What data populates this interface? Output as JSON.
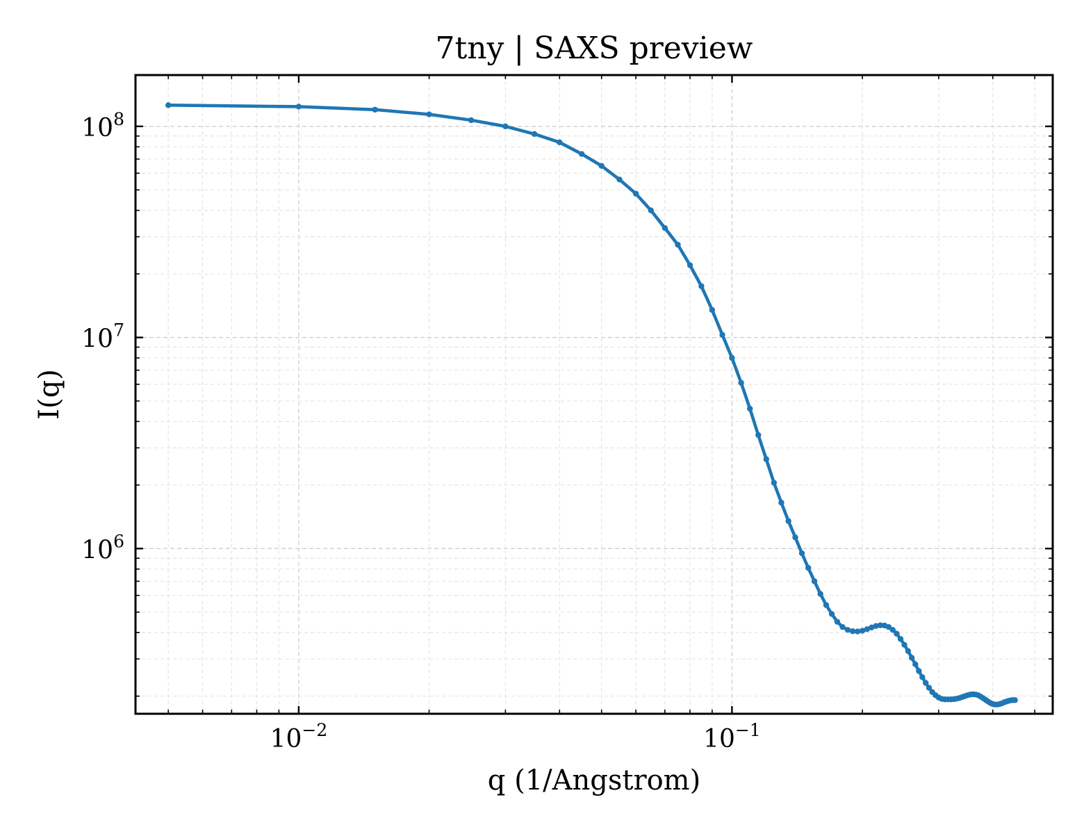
{
  "chart_data": {
    "type": "line",
    "title": "7tny | SAXS preview",
    "xlabel": "q (1/Angstrom)",
    "ylabel": "I(q)",
    "xscale": "log",
    "yscale": "log",
    "xlim": [
      0.0042,
      0.55
    ],
    "ylim": [
      165000,
      175000000
    ],
    "grid": true,
    "grid_minor": true,
    "legend": "none",
    "x_ticks": [
      {
        "value": 0.01,
        "base": "10",
        "exp": "−2"
      },
      {
        "value": 0.1,
        "base": "10",
        "exp": "−1"
      }
    ],
    "y_ticks": [
      {
        "value": 1000000,
        "base": "10",
        "exp": "6"
      },
      {
        "value": 10000000,
        "base": "10",
        "exp": "7"
      },
      {
        "value": 100000000,
        "base": "10",
        "exp": "8"
      }
    ],
    "series": [
      {
        "color": "#1f77b4",
        "marker": "dot",
        "points": [
          [
            0.005,
            126000000
          ],
          [
            0.01,
            124000000
          ],
          [
            0.015,
            120000000
          ],
          [
            0.02,
            114000000
          ],
          [
            0.025,
            107000000
          ],
          [
            0.03,
            100000000
          ],
          [
            0.035,
            92000000
          ],
          [
            0.04,
            84000000
          ],
          [
            0.045,
            74000000
          ],
          [
            0.05,
            65000000
          ],
          [
            0.055,
            56000000
          ],
          [
            0.06,
            48000000
          ],
          [
            0.065,
            40000000
          ],
          [
            0.07,
            33000000
          ],
          [
            0.075,
            27500000
          ],
          [
            0.08,
            22000000
          ],
          [
            0.085,
            17500000
          ],
          [
            0.09,
            13500000
          ],
          [
            0.095,
            10300000
          ],
          [
            0.1,
            8000000
          ],
          [
            0.105,
            6100000
          ],
          [
            0.11,
            4600000
          ],
          [
            0.115,
            3450000
          ],
          [
            0.12,
            2650000
          ],
          [
            0.125,
            2050000
          ],
          [
            0.13,
            1650000
          ],
          [
            0.135,
            1350000
          ],
          [
            0.14,
            1130000
          ],
          [
            0.145,
            950000
          ],
          [
            0.15,
            810000
          ],
          [
            0.155,
            700000
          ],
          [
            0.16,
            610000
          ],
          [
            0.165,
            540000
          ],
          [
            0.17,
            490000
          ],
          [
            0.175,
            450000
          ],
          [
            0.18,
            425000
          ],
          [
            0.185,
            412000
          ],
          [
            0.19,
            406000
          ],
          [
            0.195,
            405000
          ],
          [
            0.2,
            408000
          ],
          [
            0.205,
            415000
          ],
          [
            0.21,
            423000
          ],
          [
            0.215,
            430000
          ],
          [
            0.22,
            433000
          ],
          [
            0.225,
            432000
          ],
          [
            0.23,
            425000
          ],
          [
            0.235,
            412000
          ],
          [
            0.24,
            395000
          ],
          [
            0.245,
            373000
          ],
          [
            0.25,
            350000
          ],
          [
            0.255,
            327000
          ],
          [
            0.26,
            304000
          ],
          [
            0.265,
            283000
          ],
          [
            0.27,
            263000
          ],
          [
            0.275,
            246000
          ],
          [
            0.28,
            231000
          ],
          [
            0.285,
            219000
          ],
          [
            0.29,
            209000
          ],
          [
            0.295,
            202000
          ],
          [
            0.3,
            197000
          ],
          [
            0.305,
            194000
          ],
          [
            0.31,
            193000
          ],
          [
            0.315,
            193000
          ],
          [
            0.32,
            193000
          ],
          [
            0.325,
            193500
          ],
          [
            0.33,
            194500
          ],
          [
            0.335,
            196000
          ],
          [
            0.34,
            198000
          ],
          [
            0.345,
            200000
          ],
          [
            0.35,
            202000
          ],
          [
            0.355,
            203500
          ],
          [
            0.36,
            204000
          ],
          [
            0.365,
            203500
          ],
          [
            0.37,
            202000
          ],
          [
            0.375,
            199000
          ],
          [
            0.38,
            195500
          ],
          [
            0.385,
            192000
          ],
          [
            0.39,
            188500
          ],
          [
            0.395,
            185500
          ],
          [
            0.4,
            183500
          ],
          [
            0.405,
            182500
          ],
          [
            0.41,
            182500
          ],
          [
            0.415,
            183500
          ],
          [
            0.42,
            185000
          ],
          [
            0.425,
            187000
          ],
          [
            0.43,
            188500
          ],
          [
            0.435,
            190000
          ],
          [
            0.44,
            191000
          ],
          [
            0.445,
            191500
          ],
          [
            0.45,
            191500
          ]
        ]
      }
    ]
  }
}
